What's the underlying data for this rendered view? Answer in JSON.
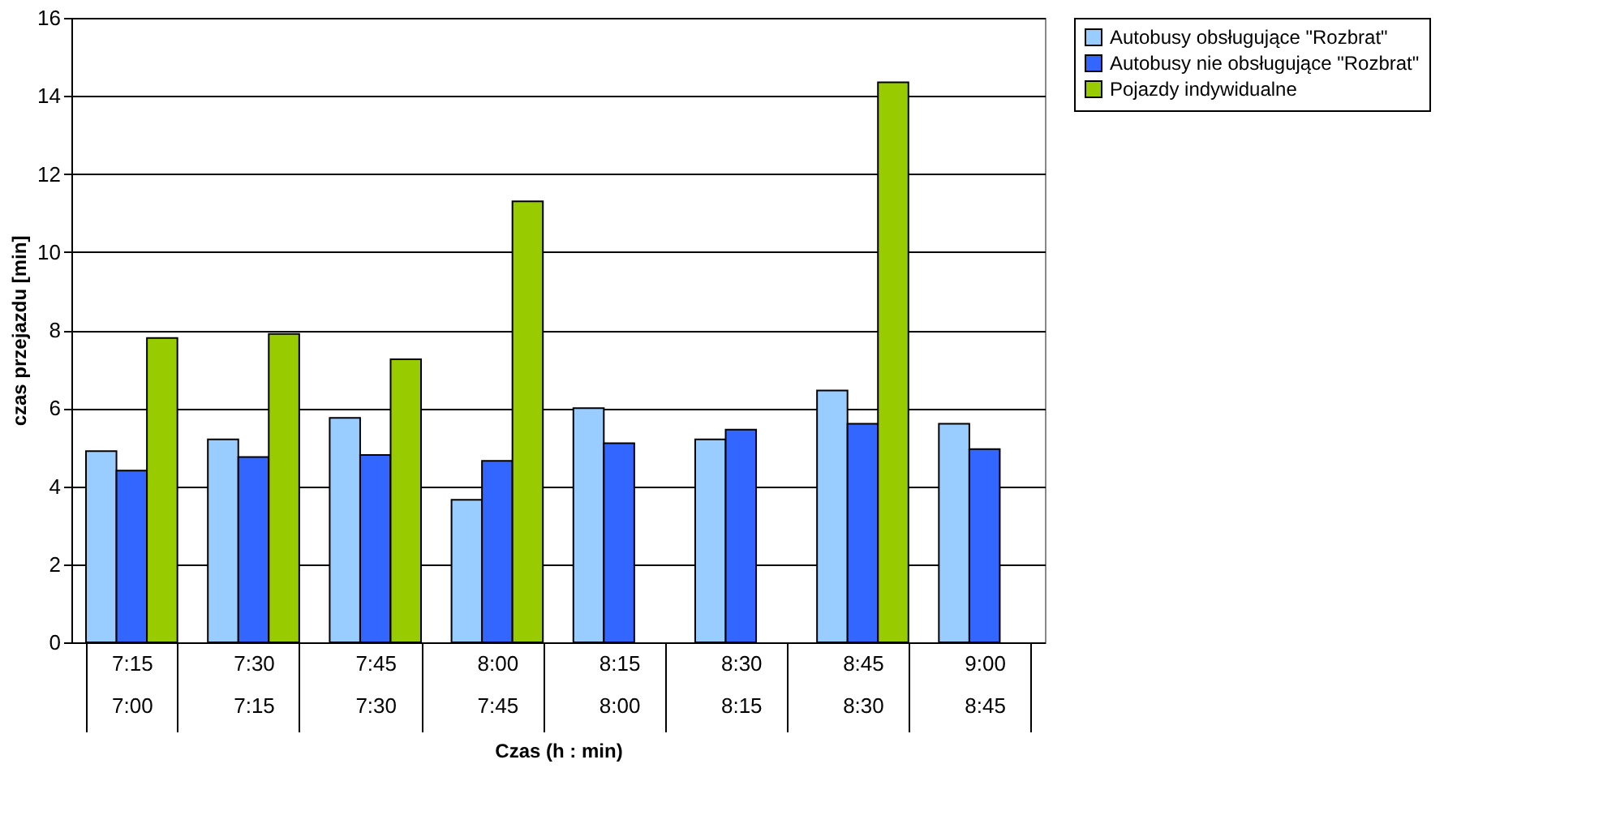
{
  "chart_data": {
    "type": "bar",
    "xlabel": "Czas (h : min)",
    "ylabel": "czas przejazdu [min]",
    "categories": [
      "7:15\n7:00",
      "7:30\n7:15",
      "7:45\n7:30",
      "8:00\n7:45",
      "8:15\n8:00",
      "8:30\n8:15",
      "8:45\n8:30",
      "9:00\n8:45"
    ],
    "series": [
      {
        "name": "Autobusy obsługujące \"Rozbrat\"",
        "color": "#99ccff",
        "values": [
          4.9,
          5.2,
          5.75,
          3.65,
          6.0,
          5.2,
          6.45,
          5.6
        ]
      },
      {
        "name": "Autobusy nie obsługujące \"Rozbrat\"",
        "color": "#3366ff",
        "values": [
          4.4,
          4.75,
          4.8,
          4.65,
          5.1,
          5.45,
          5.6,
          4.95
        ]
      },
      {
        "name": "Pojazdy indywidualne",
        "color": "#99cc00",
        "values": [
          7.8,
          7.9,
          7.25,
          11.3,
          null,
          null,
          14.35,
          null
        ]
      }
    ],
    "ylim": [
      0,
      16
    ],
    "yticks": [
      0,
      2,
      4,
      6,
      8,
      10,
      12,
      14,
      16
    ],
    "grid": "y",
    "legend": "right"
  }
}
